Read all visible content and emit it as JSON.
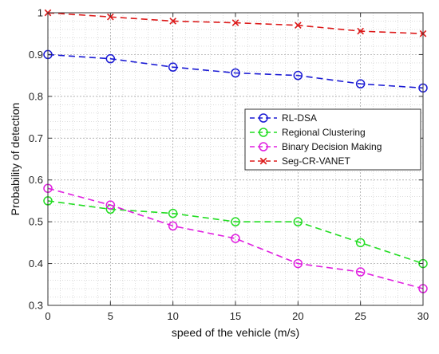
{
  "chart_data": {
    "type": "line",
    "xlabel": "speed of the vehicle (m/s)",
    "ylabel": "Probability of detection",
    "xlim": [
      0,
      30
    ],
    "ylim": [
      0.3,
      1
    ],
    "x_ticks": [
      0,
      5,
      10,
      15,
      20,
      25,
      30
    ],
    "y_ticks": [
      0.3,
      0.4,
      0.5,
      0.6,
      0.7,
      0.8,
      0.9,
      1
    ],
    "x_tick_labels": [
      "0",
      "5",
      "10",
      "15",
      "20",
      "25",
      "30"
    ],
    "y_tick_labels": [
      "0.3",
      "0.4",
      "0.5",
      "0.6",
      "0.7",
      "0.8",
      "0.9",
      "1"
    ],
    "grid": true,
    "minor_grid": true,
    "legend_position": "right",
    "x": [
      0,
      5,
      10,
      15,
      20,
      25,
      30
    ],
    "series": [
      {
        "name": "RL-DSA",
        "color": "#1a1ad4",
        "marker": "circle",
        "values": [
          0.9,
          0.89,
          0.87,
          0.856,
          0.85,
          0.83,
          0.82
        ]
      },
      {
        "name": "Regional Clustering",
        "color": "#22dd22",
        "marker": "circle",
        "values": [
          0.55,
          0.53,
          0.52,
          0.5,
          0.5,
          0.45,
          0.4
        ]
      },
      {
        "name": "Binary Decision Making",
        "color": "#e020e0",
        "marker": "circle",
        "values": [
          0.58,
          0.54,
          0.49,
          0.46,
          0.4,
          0.38,
          0.34
        ]
      },
      {
        "name": "Seg-CR-VANET",
        "color": "#dd1a1a",
        "marker": "x",
        "values": [
          1.0,
          0.99,
          0.98,
          0.976,
          0.97,
          0.956,
          0.95
        ]
      }
    ]
  }
}
